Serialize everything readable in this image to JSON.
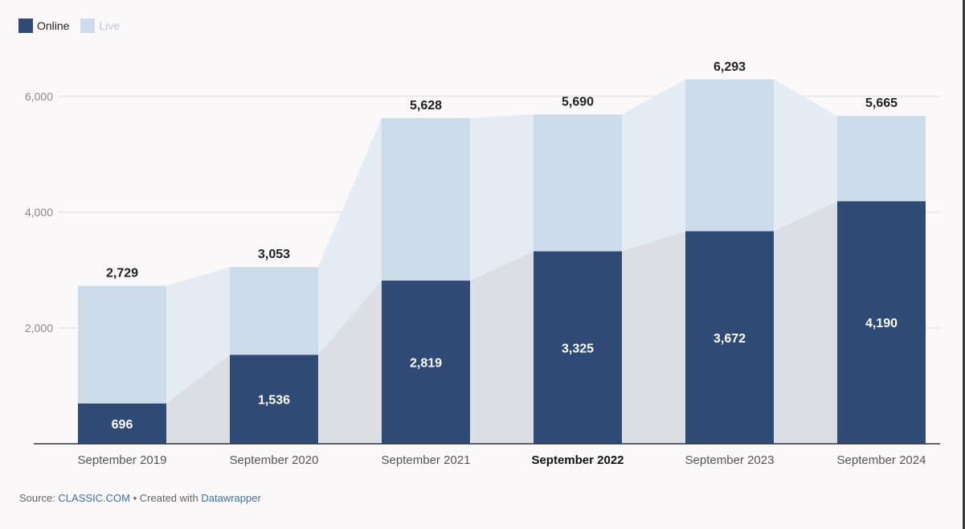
{
  "legend": {
    "online_label": "Online",
    "live_label": "Live"
  },
  "colors": {
    "online": "#2e4a75",
    "live": "#cddcea",
    "area_live": "#e4ebf3",
    "area_online": "#dcdee5",
    "axis": "#333333",
    "grid": "#e0e0e0"
  },
  "chart_data": {
    "type": "bar",
    "stacked": true,
    "categories": [
      "September 2019",
      "September 2020",
      "September 2021",
      "September 2022",
      "September 2023",
      "September 2024"
    ],
    "highlighted_category": "September 2022",
    "series": [
      {
        "name": "Online",
        "values": [
          696,
          1536,
          2819,
          3325,
          3672,
          4190
        ]
      },
      {
        "name": "Live",
        "values": [
          2033,
          1517,
          2809,
          2365,
          2621,
          1475
        ]
      }
    ],
    "totals": [
      2729,
      3053,
      5628,
      5690,
      6293,
      5665
    ],
    "total_labels": [
      "2,729",
      "3,053",
      "5,628",
      "5,690",
      "6,293",
      "5,665"
    ],
    "online_labels": [
      "696",
      "1,536",
      "2,819",
      "3,325",
      "3,672",
      "4,190"
    ],
    "y_ticks": [
      2000,
      4000,
      6000
    ],
    "y_tick_labels": [
      "2,000",
      "4,000",
      "6,000"
    ],
    "ylim": [
      0,
      6400
    ],
    "grid": true,
    "legend_position": "top-left"
  },
  "footer": {
    "source_prefix": "Source: ",
    "source_name": "CLASSIC.COM",
    "created_with": " • Created with ",
    "tool_name": "Datawrapper"
  }
}
